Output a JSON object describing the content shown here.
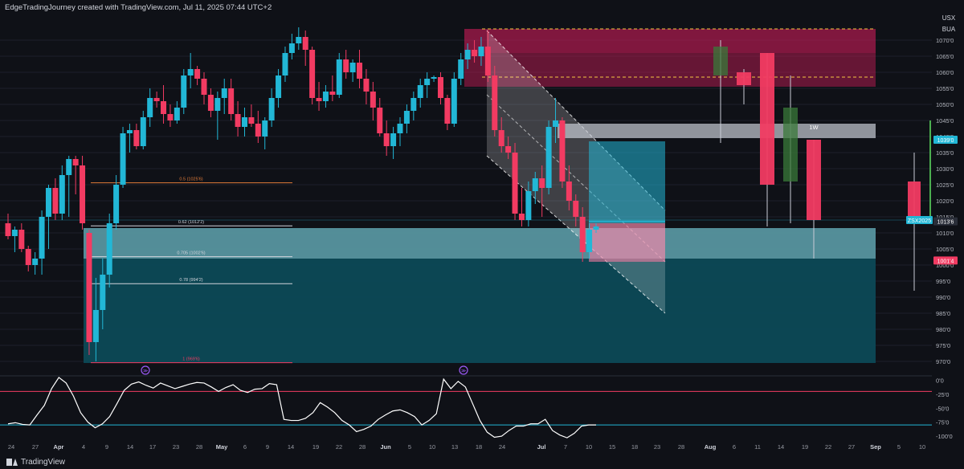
{
  "header": {
    "attribution": "EdgeTradingJourney created with TradingView.com, Jul 11, 2025 07:44 UTC+2"
  },
  "footer": {
    "brand": "TradingView"
  },
  "symbol_box": {
    "line1": "USX",
    "line2": "BUA"
  },
  "colors": {
    "bg": "#0f1117",
    "up": "#22b7d6",
    "down": "#f23b62",
    "grid": "#1c1f2b",
    "weekly_up": "#3a7a3a",
    "weekly_down": "#f23b62",
    "zone": "#1c7f8a",
    "supply": "#d11c5a"
  },
  "chart_data": [
    {
      "type": "candlestick",
      "title": "",
      "y_axis": {
        "ylim": [
          966,
          1078
        ],
        "ticks": [
          "1070'0",
          "1065'0",
          "1060'0",
          "1055'0",
          "1050'0",
          "1045'0",
          "1040'0",
          "1035'0",
          "1030'0",
          "1025'0",
          "1020'0",
          "1015'0",
          "1010'0",
          "1005'0",
          "1000'0",
          "995'0",
          "990'0",
          "985'0",
          "980'0",
          "975'0",
          "970'0"
        ]
      },
      "x_axis": {
        "tick_labels": [
          "24",
          "27",
          "Apr",
          "4",
          "9",
          "14",
          "17",
          "23",
          "28",
          "May",
          "6",
          "9",
          "14",
          "19",
          "22",
          "28",
          "Jun",
          "5",
          "10",
          "13",
          "18",
          "24",
          "Jul",
          "7",
          "10",
          "15",
          "18",
          "23",
          "28",
          "Aug",
          "6",
          "11",
          "14",
          "19",
          "22",
          "27",
          "Sep",
          "5",
          "10"
        ]
      },
      "daily_candles": [
        {
          "o": 1013.0,
          "h": 1016.0,
          "l": 1008.0,
          "c": 1009.0
        },
        {
          "o": 1009.0,
          "h": 1012.0,
          "l": 1004.0,
          "c": 1011.0
        },
        {
          "o": 1011.0,
          "h": 1013.0,
          "l": 1004.0,
          "c": 1005.0
        },
        {
          "o": 1005.0,
          "h": 1006.0,
          "l": 998.0,
          "c": 1000.0
        },
        {
          "o": 1000.0,
          "h": 1004.0,
          "l": 997.0,
          "c": 1002.0
        },
        {
          "o": 1002.0,
          "h": 1017.0,
          "l": 997.0,
          "c": 1015.0
        },
        {
          "o": 1015.0,
          "h": 1025.0,
          "l": 1005.0,
          "c": 1024.0
        },
        {
          "o": 1024.0,
          "h": 1027.0,
          "l": 1014.0,
          "c": 1016.0
        },
        {
          "o": 1016.0,
          "h": 1031.0,
          "l": 1014.0,
          "c": 1028.0
        },
        {
          "o": 1028.0,
          "h": 1034.0,
          "l": 1015.0,
          "c": 1033.0
        },
        {
          "o": 1033.0,
          "h": 1034.0,
          "l": 1022.0,
          "c": 1031.0
        },
        {
          "o": 1031.0,
          "h": 1034.0,
          "l": 1011.0,
          "c": 1013.0
        },
        {
          "o": 1010.0,
          "h": 1011.0,
          "l": 972.0,
          "c": 976.0
        },
        {
          "o": 976.0,
          "h": 996.0,
          "l": 970.0,
          "c": 986.0
        },
        {
          "o": 986.0,
          "h": 1002.0,
          "l": 980.0,
          "c": 997.0
        },
        {
          "o": 997.0,
          "h": 1016.0,
          "l": 993.0,
          "c": 1013.0
        },
        {
          "o": 1013.0,
          "h": 1028.0,
          "l": 1011.0,
          "c": 1025.0
        },
        {
          "o": 1025.0,
          "h": 1043.0,
          "l": 1024.0,
          "c": 1041.0
        },
        {
          "o": 1041.0,
          "h": 1044.0,
          "l": 1035.0,
          "c": 1042.0
        },
        {
          "o": 1042.0,
          "h": 1044.0,
          "l": 1036.0,
          "c": 1037.0
        },
        {
          "o": 1037.0,
          "h": 1048.0,
          "l": 1036.0,
          "c": 1046.0
        },
        {
          "o": 1046.0,
          "h": 1055.0,
          "l": 1043.0,
          "c": 1052.0
        },
        {
          "o": 1052.0,
          "h": 1054.0,
          "l": 1049.0,
          "c": 1051.0
        },
        {
          "o": 1051.0,
          "h": 1056.0,
          "l": 1044.0,
          "c": 1047.0
        },
        {
          "o": 1047.0,
          "h": 1050.0,
          "l": 1043.0,
          "c": 1045.0
        },
        {
          "o": 1045.0,
          "h": 1051.0,
          "l": 1044.0,
          "c": 1049.0
        },
        {
          "o": 1049.0,
          "h": 1061.0,
          "l": 1047.0,
          "c": 1059.0
        },
        {
          "o": 1059.0,
          "h": 1066.0,
          "l": 1055.0,
          "c": 1061.0
        },
        {
          "o": 1061.0,
          "h": 1062.0,
          "l": 1056.0,
          "c": 1058.0
        },
        {
          "o": 1058.0,
          "h": 1060.0,
          "l": 1050.0,
          "c": 1053.0
        },
        {
          "o": 1053.0,
          "h": 1055.0,
          "l": 1046.0,
          "c": 1048.0
        },
        {
          "o": 1048.0,
          "h": 1054.0,
          "l": 1039.0,
          "c": 1052.0
        },
        {
          "o": 1052.0,
          "h": 1058.0,
          "l": 1047.0,
          "c": 1055.0
        },
        {
          "o": 1055.0,
          "h": 1058.0,
          "l": 1045.0,
          "c": 1047.0
        },
        {
          "o": 1047.0,
          "h": 1051.0,
          "l": 1040.0,
          "c": 1043.0
        },
        {
          "o": 1043.0,
          "h": 1049.0,
          "l": 1040.0,
          "c": 1046.0
        },
        {
          "o": 1046.0,
          "h": 1050.0,
          "l": 1043.0,
          "c": 1044.0
        },
        {
          "o": 1044.0,
          "h": 1048.0,
          "l": 1038.0,
          "c": 1040.0
        },
        {
          "o": 1040.0,
          "h": 1046.0,
          "l": 1036.0,
          "c": 1045.0
        },
        {
          "o": 1045.0,
          "h": 1055.0,
          "l": 1043.0,
          "c": 1052.0
        },
        {
          "o": 1052.0,
          "h": 1061.0,
          "l": 1049.0,
          "c": 1059.0
        },
        {
          "o": 1059.0,
          "h": 1068.0,
          "l": 1057.0,
          "c": 1066.0
        },
        {
          "o": 1066.0,
          "h": 1072.0,
          "l": 1064.0,
          "c": 1069.0
        },
        {
          "o": 1069.0,
          "h": 1074.0,
          "l": 1067.0,
          "c": 1071.0
        },
        {
          "o": 1071.0,
          "h": 1073.0,
          "l": 1062.0,
          "c": 1067.0
        },
        {
          "o": 1067.0,
          "h": 1068.0,
          "l": 1050.0,
          "c": 1052.0
        },
        {
          "o": 1052.0,
          "h": 1057.0,
          "l": 1048.0,
          "c": 1051.0
        },
        {
          "o": 1051.0,
          "h": 1056.0,
          "l": 1049.0,
          "c": 1054.0
        },
        {
          "o": 1054.0,
          "h": 1059.0,
          "l": 1051.0,
          "c": 1053.0
        },
        {
          "o": 1053.0,
          "h": 1066.0,
          "l": 1052.0,
          "c": 1064.0
        },
        {
          "o": 1064.0,
          "h": 1067.0,
          "l": 1058.0,
          "c": 1060.0
        },
        {
          "o": 1060.0,
          "h": 1064.0,
          "l": 1057.0,
          "c": 1063.0
        },
        {
          "o": 1063.0,
          "h": 1067.0,
          "l": 1055.0,
          "c": 1058.0
        },
        {
          "o": 1058.0,
          "h": 1061.0,
          "l": 1050.0,
          "c": 1054.0
        },
        {
          "o": 1054.0,
          "h": 1057.0,
          "l": 1045.0,
          "c": 1049.0
        },
        {
          "o": 1049.0,
          "h": 1052.0,
          "l": 1040.0,
          "c": 1041.0
        },
        {
          "o": 1041.0,
          "h": 1045.0,
          "l": 1034.0,
          "c": 1037.0
        },
        {
          "o": 1037.0,
          "h": 1043.0,
          "l": 1033.0,
          "c": 1041.0
        },
        {
          "o": 1041.0,
          "h": 1046.0,
          "l": 1037.0,
          "c": 1044.0
        },
        {
          "o": 1044.0,
          "h": 1050.0,
          "l": 1041.0,
          "c": 1048.0
        },
        {
          "o": 1048.0,
          "h": 1054.0,
          "l": 1045.0,
          "c": 1052.0
        },
        {
          "o": 1052.0,
          "h": 1058.0,
          "l": 1049.0,
          "c": 1056.0
        },
        {
          "o": 1056.0,
          "h": 1060.0,
          "l": 1052.0,
          "c": 1058.0
        },
        {
          "o": 1058.0,
          "h": 1059.0,
          "l": 1057.0,
          "c": 1058.5
        },
        {
          "o": 1058.5,
          "h": 1060.0,
          "l": 1050.0,
          "c": 1052.0
        },
        {
          "o": 1052.0,
          "h": 1053.0,
          "l": 1042.0,
          "c": 1044.0
        },
        {
          "o": 1044.0,
          "h": 1060.0,
          "l": 1043.0,
          "c": 1058.0
        },
        {
          "o": 1058.0,
          "h": 1066.0,
          "l": 1056.0,
          "c": 1064.0
        },
        {
          "o": 1064.0,
          "h": 1069.0,
          "l": 1061.0,
          "c": 1067.0
        },
        {
          "o": 1067.0,
          "h": 1070.0,
          "l": 1063.0,
          "c": 1065.0
        },
        {
          "o": 1065.0,
          "h": 1071.0,
          "l": 1062.0,
          "c": 1068.0
        },
        {
          "o": 1068.0,
          "h": 1073.0,
          "l": 1057.0,
          "c": 1059.0
        },
        {
          "o": 1059.0,
          "h": 1062.0,
          "l": 1040.0,
          "c": 1042.0
        },
        {
          "o": 1042.0,
          "h": 1046.0,
          "l": 1035.0,
          "c": 1037.0
        },
        {
          "o": 1037.0,
          "h": 1040.0,
          "l": 1033.0,
          "c": 1035.0
        },
        {
          "o": 1035.0,
          "h": 1038.0,
          "l": 1014.0,
          "c": 1016.0
        },
        {
          "o": 1016.0,
          "h": 1024.0,
          "l": 1012.0,
          "c": 1014.0
        },
        {
          "o": 1014.0,
          "h": 1026.0,
          "l": 1012.0,
          "c": 1023.0
        },
        {
          "o": 1023.0,
          "h": 1029.0,
          "l": 1019.0,
          "c": 1027.0
        },
        {
          "o": 1027.0,
          "h": 1031.0,
          "l": 1015.0,
          "c": 1024.0
        },
        {
          "o": 1024.0,
          "h": 1045.0,
          "l": 1022.0,
          "c": 1043.0
        },
        {
          "o": 1043.0,
          "h": 1052.0,
          "l": 1038.0,
          "c": 1045.0
        },
        {
          "o": 1045.0,
          "h": 1046.0,
          "l": 1024.0,
          "c": 1026.0
        },
        {
          "o": 1026.0,
          "h": 1031.0,
          "l": 1017.0,
          "c": 1020.0
        },
        {
          "o": 1020.0,
          "h": 1022.0,
          "l": 1012.0,
          "c": 1015.0
        },
        {
          "o": 1015.0,
          "h": 1018.0,
          "l": 1001.0,
          "c": 1004.0
        },
        {
          "o": 1004.0,
          "h": 1013.0,
          "l": 1002.0,
          "c": 1011.0
        },
        {
          "o": 1011.0,
          "h": 1013.0,
          "l": 1010.0,
          "c": 1012.0
        }
      ],
      "weekly_candles": [
        {
          "o": 1059.0,
          "h": 1070.0,
          "l": 1038.0,
          "c": 1068.0
        },
        {
          "o": 1060.0,
          "h": 1061.0,
          "l": 1050.0,
          "c": 1056.0
        },
        {
          "o": 1066.0,
          "h": 1066.0,
          "l": 1012.0,
          "c": 1025.0
        },
        {
          "o": 1026.0,
          "h": 1059.0,
          "l": 1013.0,
          "c": 1049.0
        },
        {
          "o": 1039.0,
          "h": 1039.0,
          "l": 1002.0,
          "c": 1014.0
        },
        {
          "o": 1026.0,
          "h": 1035.0,
          "l": 992.0,
          "c": 1014.0
        }
      ],
      "fib_levels": [
        {
          "label": "0.5 (1025'6)",
          "value": 1025.6
        },
        {
          "label": "0.62 (1012'2)",
          "value": 1012.2
        },
        {
          "label": "0.705 (1002'6)",
          "value": 1002.6
        },
        {
          "label": "0.78 (994'2)",
          "value": 994.2
        },
        {
          "label": "1 (969'6)",
          "value": 969.6
        }
      ],
      "zones": [
        {
          "name": "demand",
          "from": 969.5,
          "to": 1011.5
        },
        {
          "name": "supply",
          "from": 1055.5,
          "to": 1073.5
        },
        {
          "name": "weekly",
          "label": "1W",
          "from": 1039.5,
          "to": 1044.0
        }
      ],
      "price_labels": [
        {
          "text": "1039'0",
          "value": 1039.0,
          "color": "#22b7d6"
        },
        {
          "text": "ZSX2025",
          "value": 1014.0,
          "color": "#22b7d6"
        },
        {
          "text": "1013'6",
          "value": 1013.6,
          "color": "#2a2e39"
        },
        {
          "text": "1001'4",
          "value": 1001.4,
          "color": "#f23b62"
        }
      ],
      "dashed_levels": [
        1073.5,
        1058.5
      ]
    },
    {
      "type": "line",
      "title": "",
      "y_axis": {
        "ylim": [
          -110,
          5
        ],
        "ticks": [
          "0'0",
          "-25'0",
          "-50'0",
          "-75'0",
          "-100'0"
        ]
      },
      "levels": [
        -20,
        -80
      ],
      "values": [
        -78,
        -76,
        -79,
        -80,
        -62,
        -45,
        -15,
        5,
        -5,
        -28,
        -58,
        -75,
        -85,
        -78,
        -65,
        -42,
        -18,
        -7,
        -3,
        -9,
        -14,
        -5,
        -10,
        -15,
        -11,
        -7,
        -4,
        -5,
        -12,
        -20,
        -13,
        -8,
        -18,
        -22,
        -16,
        -15,
        -6,
        -8,
        -70,
        -72,
        -72,
        -68,
        -58,
        -40,
        -48,
        -58,
        -72,
        -80,
        -92,
        -88,
        -82,
        -70,
        -62,
        -55,
        -53,
        -58,
        -65,
        -80,
        -72,
        -60,
        2,
        -15,
        -2,
        -12,
        -42,
        -72,
        -93,
        -102,
        -100,
        -90,
        -82,
        -82,
        -78,
        -78,
        -70,
        -90,
        -98,
        -103,
        -95,
        -82,
        -80,
        -80
      ]
    }
  ]
}
